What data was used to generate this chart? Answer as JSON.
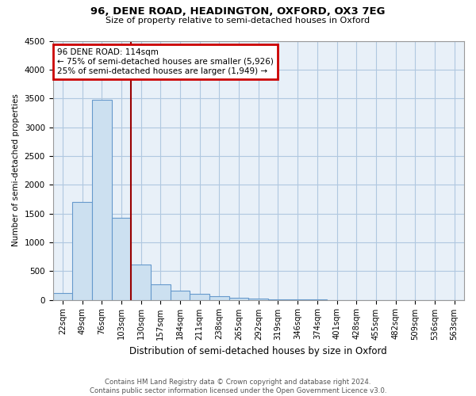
{
  "title1": "96, DENE ROAD, HEADINGTON, OXFORD, OX3 7EG",
  "title2": "Size of property relative to semi-detached houses in Oxford",
  "xlabel": "Distribution of semi-detached houses by size in Oxford",
  "ylabel": "Number of semi-detached properties",
  "categories": [
    "22sqm",
    "49sqm",
    "76sqm",
    "103sqm",
    "130sqm",
    "157sqm",
    "184sqm",
    "211sqm",
    "238sqm",
    "265sqm",
    "292sqm",
    "319sqm",
    "346sqm",
    "374sqm",
    "401sqm",
    "428sqm",
    "455sqm",
    "482sqm",
    "509sqm",
    "536sqm",
    "563sqm"
  ],
  "values": [
    120,
    1700,
    3480,
    1430,
    620,
    265,
    155,
    100,
    60,
    30,
    15,
    10,
    8,
    5,
    0,
    0,
    0,
    0,
    0,
    0,
    0
  ],
  "bar_color": "#cce0f0",
  "bar_edge_color": "#6699cc",
  "vline_x": 3.5,
  "annotation_text": "96 DENE ROAD: 114sqm\n← 75% of semi-detached houses are smaller (5,926)\n25% of semi-detached houses are larger (1,949) →",
  "box_edge_color": "#cc0000",
  "vline_color": "#990000",
  "ylim": [
    0,
    4500
  ],
  "footnote1": "Contains HM Land Registry data © Crown copyright and database right 2024.",
  "footnote2": "Contains public sector information licensed under the Open Government Licence v3.0.",
  "bg_color": "#ffffff",
  "plot_bg_color": "#e8f0f8",
  "grid_color": "#b0c8e0"
}
